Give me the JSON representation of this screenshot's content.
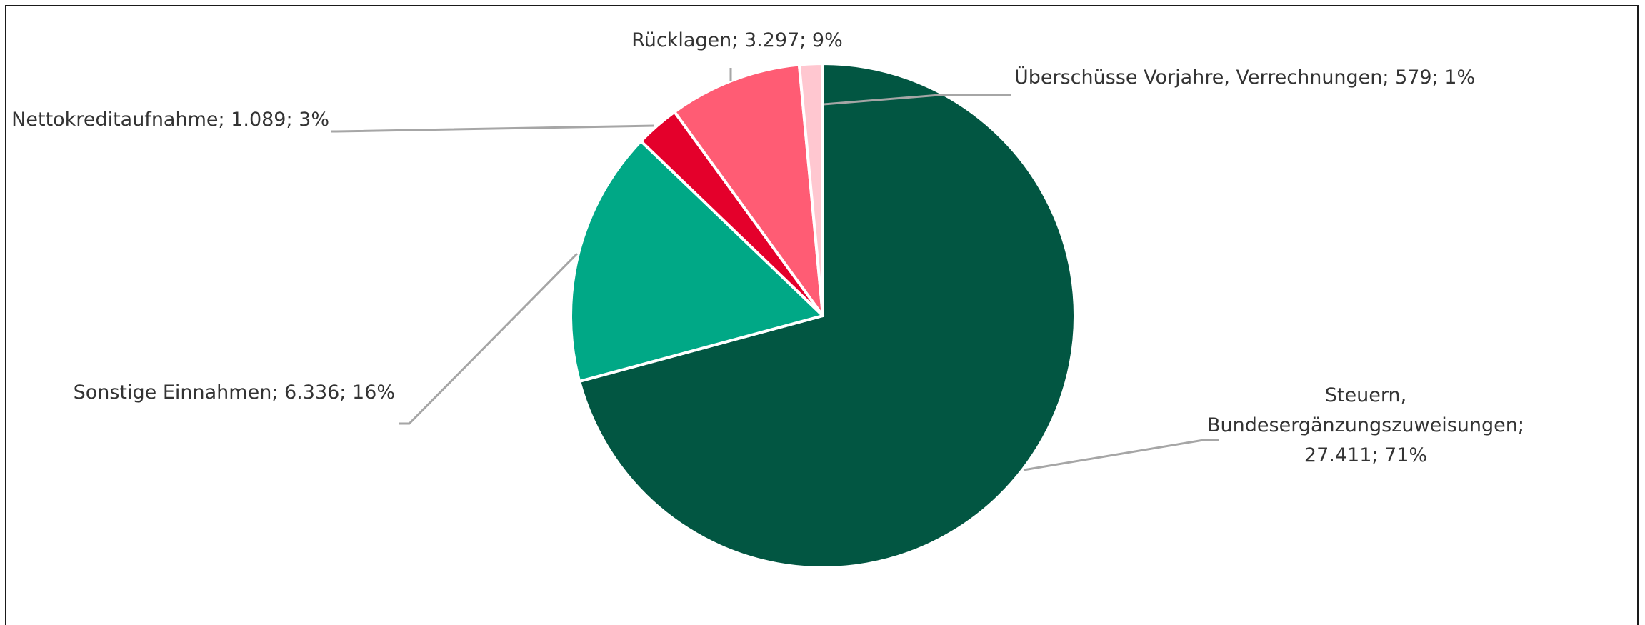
{
  "chart_data": {
    "type": "pie",
    "start_angle_deg": 0,
    "direction": "clockwise",
    "slices": [
      {
        "label_lines": [
          "Steuern,",
          "Bundesergänzungszuweisungen;",
          "27.411; 71%"
        ],
        "value": 27411,
        "percent": 71,
        "color": "#025642"
      },
      {
        "label_lines": [
          "Sonstige Einnahmen; 6.336; 16%"
        ],
        "value": 6336,
        "percent": 16,
        "color": "#00a886"
      },
      {
        "label_lines": [
          "Nettokreditaufnahme; 1.089; 3%"
        ],
        "value": 1089,
        "percent": 3,
        "color": "#e4002b"
      },
      {
        "label_lines": [
          "Rücklagen; 3.297; 9%"
        ],
        "value": 3297,
        "percent": 9,
        "color": "#ff5c74"
      },
      {
        "label_lines": [
          "Überschüsse Vorjahre, Verrechnungen; 579; 1%"
        ],
        "value": 579,
        "percent": 1,
        "color": "#ffc7d0"
      }
    ],
    "leader_color": "#a6a6a6",
    "border_color": "#1a1a1a"
  }
}
